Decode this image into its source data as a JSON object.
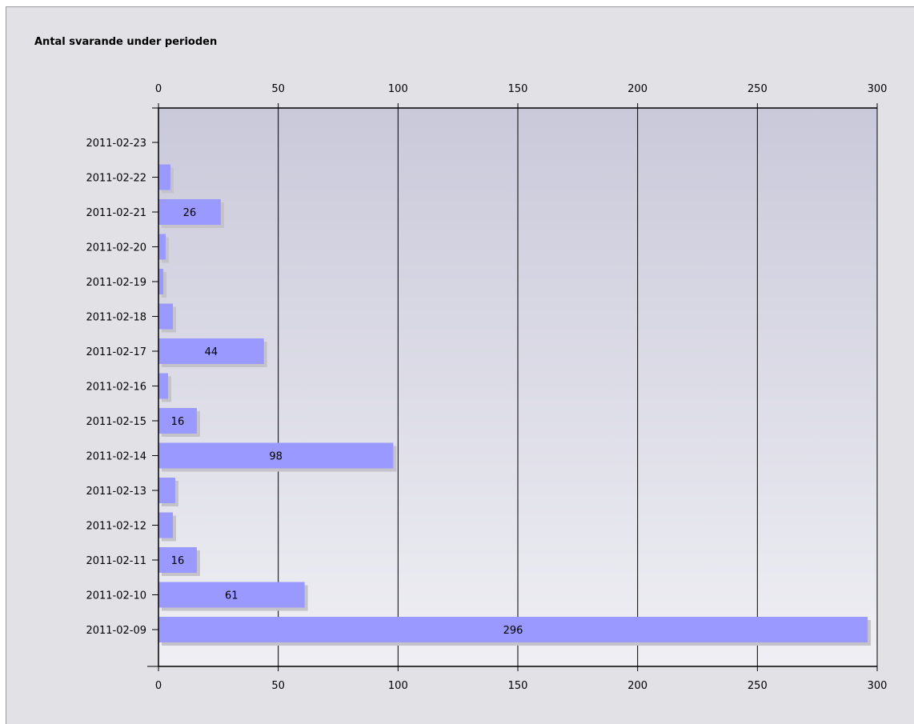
{
  "chart_data": {
    "type": "bar",
    "orientation": "horizontal",
    "title": "Antal svarande under perioden",
    "xlabel": "",
    "ylabel": "",
    "xlim": [
      0,
      300
    ],
    "xticks": [
      "0",
      "50",
      "100",
      "150",
      "200",
      "250",
      "300"
    ],
    "grid": true,
    "categories": [
      "2011-02-23",
      "2011-02-22",
      "2011-02-21",
      "2011-02-20",
      "2011-02-19",
      "2011-02-18",
      "2011-02-17",
      "2011-02-16",
      "2011-02-15",
      "2011-02-14",
      "2011-02-13",
      "2011-02-12",
      "2011-02-11",
      "2011-02-10",
      "2011-02-09"
    ],
    "values": [
      0,
      5,
      26,
      3,
      2,
      6,
      44,
      4,
      16,
      98,
      7,
      6,
      16,
      61,
      296
    ],
    "value_labels": [
      "",
      "",
      "26",
      "",
      "",
      "",
      "44",
      "",
      "16",
      "98",
      "",
      "",
      "16",
      "61",
      "296"
    ],
    "colors": {
      "bar": "#9999ff",
      "bar_shadow": "#c4c3c9",
      "plot_top": "#cac9da",
      "plot_bottom": "#efeff4",
      "background": "#e2e1e6",
      "axis": "#000000"
    }
  }
}
